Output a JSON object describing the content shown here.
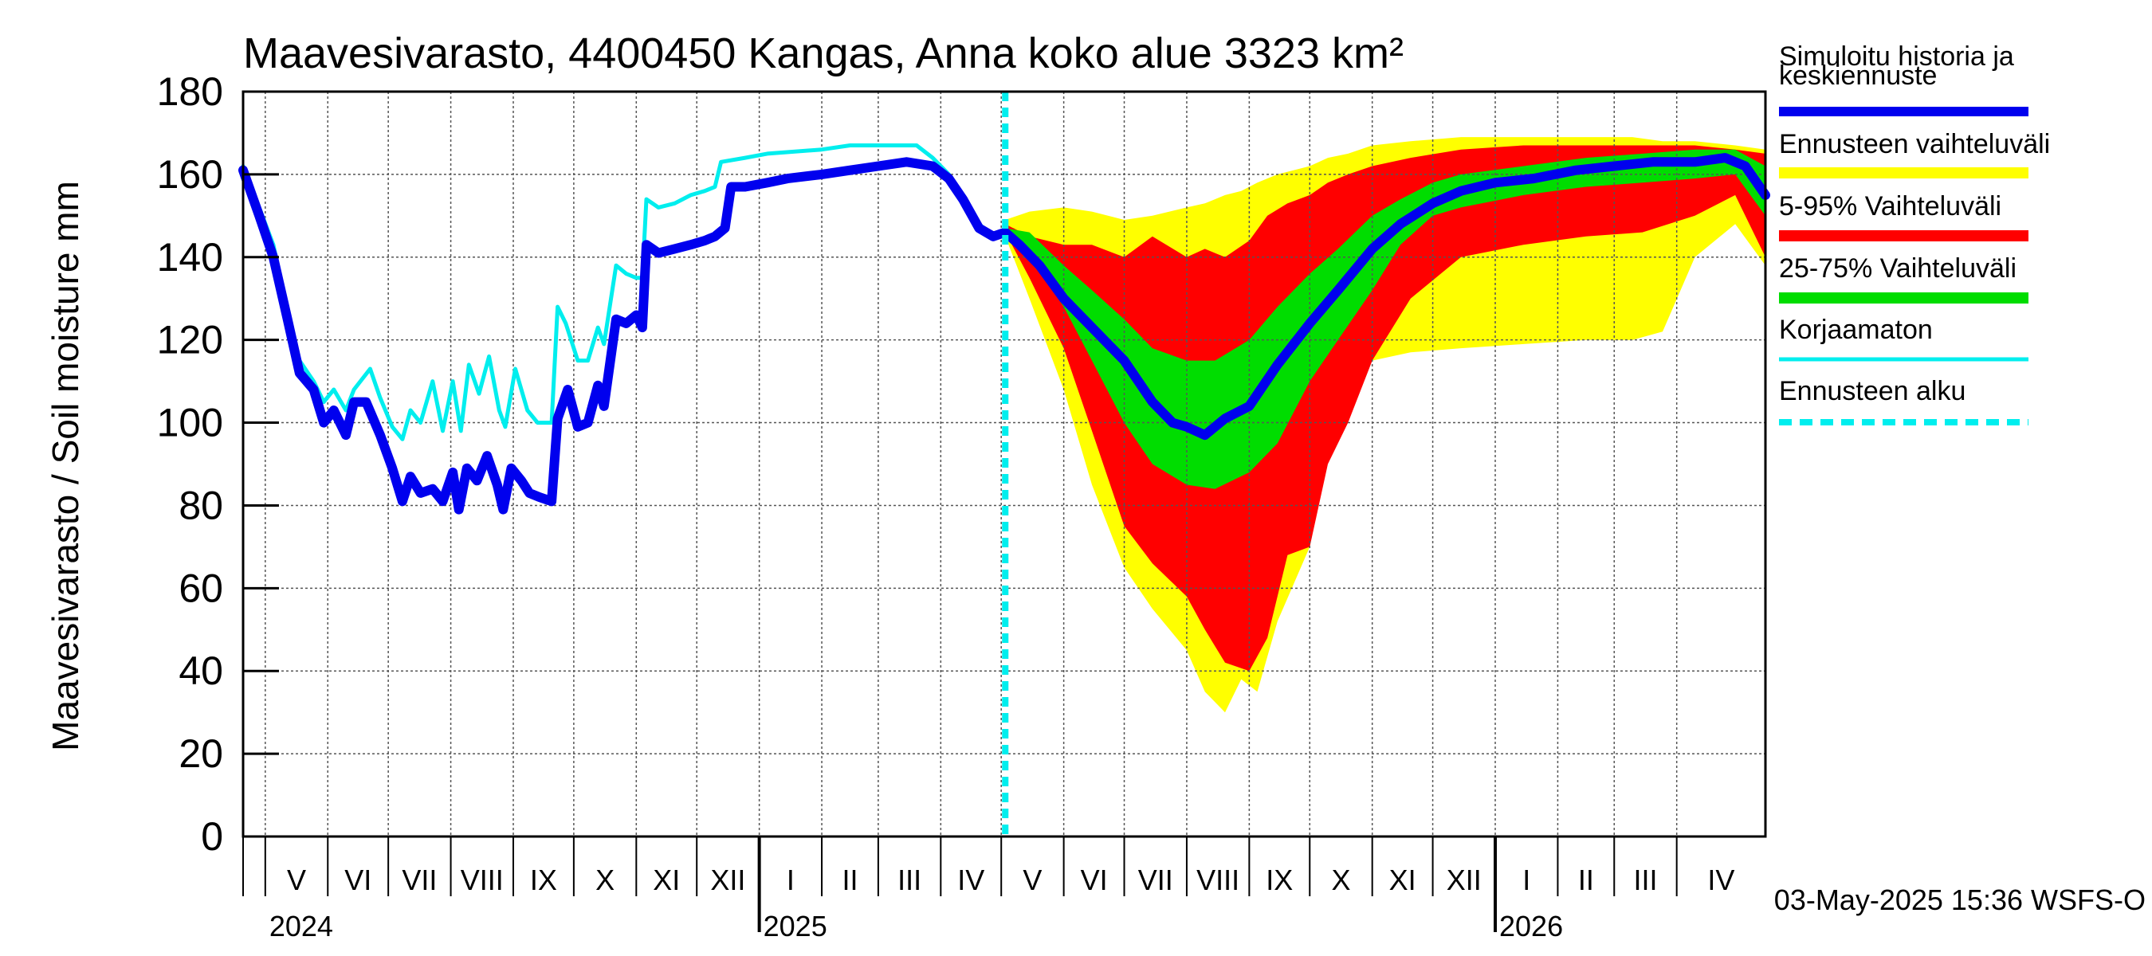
{
  "chart_data": {
    "type": "area",
    "title": "Maavesivarasto, 4400450 Kangas, Anna koko alue 3323 km²",
    "ylabel": "Maavesivarasto / Soil moisture   mm",
    "xlabel": "",
    "ylim": [
      0,
      180
    ],
    "yticks": [
      0,
      20,
      40,
      60,
      80,
      100,
      120,
      140,
      160,
      180
    ],
    "grid": true,
    "legend_position": "right",
    "x_start": "2024-04-20",
    "x_end": "2026-05-15",
    "forecast_start": "2025-05-03",
    "month_labels": [
      {
        "label": "V",
        "start": "2024-05-01"
      },
      {
        "label": "VI",
        "start": "2024-06-01"
      },
      {
        "label": "VII",
        "start": "2024-07-01"
      },
      {
        "label": "VIII",
        "start": "2024-08-01"
      },
      {
        "label": "IX",
        "start": "2024-09-01"
      },
      {
        "label": "X",
        "start": "2024-10-01"
      },
      {
        "label": "XI",
        "start": "2024-11-01"
      },
      {
        "label": "XII",
        "start": "2024-12-01"
      },
      {
        "label": "I",
        "start": "2025-01-01"
      },
      {
        "label": "II",
        "start": "2025-02-01"
      },
      {
        "label": "III",
        "start": "2025-03-01"
      },
      {
        "label": "IV",
        "start": "2025-04-01"
      },
      {
        "label": "V",
        "start": "2025-05-01"
      },
      {
        "label": "VI",
        "start": "2025-06-01"
      },
      {
        "label": "VII",
        "start": "2025-07-01"
      },
      {
        "label": "VIII",
        "start": "2025-08-01"
      },
      {
        "label": "IX",
        "start": "2025-09-01"
      },
      {
        "label": "X",
        "start": "2025-10-01"
      },
      {
        "label": "XI",
        "start": "2025-11-01"
      },
      {
        "label": "XII",
        "start": "2025-12-01"
      },
      {
        "label": "I",
        "start": "2026-01-01"
      },
      {
        "label": "II",
        "start": "2026-02-01"
      },
      {
        "label": "III",
        "start": "2026-03-01"
      },
      {
        "label": "IV",
        "start": "2026-04-01"
      }
    ],
    "year_labels": [
      {
        "label": "2024",
        "date": "2024-05-01"
      },
      {
        "label": "2025",
        "date": "2025-01-01"
      },
      {
        "label": "2026",
        "date": "2026-01-01"
      }
    ],
    "legend": [
      {
        "label": "Simuloitu historia ja keskiennuste",
        "color": "#0000ee",
        "kind": "line"
      },
      {
        "label": "Ennusteen vaihteluväli",
        "color": "#ffff00",
        "kind": "band"
      },
      {
        "label": "5-95% Vaihteluväli",
        "color": "#ff0000",
        "kind": "band"
      },
      {
        "label": "25-75% Vaihteluväli",
        "color": "#00dd00",
        "kind": "band"
      },
      {
        "label": "Korjaamaton",
        "color": "#00eeee",
        "kind": "line"
      },
      {
        "label": "Ennusteen alku",
        "color": "#00eeee",
        "kind": "dashed"
      }
    ],
    "series": {
      "simulated": {
        "color": "#0000ee",
        "points": [
          [
            "2024-04-20",
            161
          ],
          [
            "2024-04-28",
            150
          ],
          [
            "2024-05-05",
            140
          ],
          [
            "2024-05-12",
            125
          ],
          [
            "2024-05-18",
            112
          ],
          [
            "2024-05-25",
            108
          ],
          [
            "2024-05-30",
            100
          ],
          [
            "2024-06-04",
            103
          ],
          [
            "2024-06-10",
            97
          ],
          [
            "2024-06-14",
            105
          ],
          [
            "2024-06-20",
            105
          ],
          [
            "2024-06-27",
            97
          ],
          [
            "2024-07-03",
            89
          ],
          [
            "2024-07-08",
            81
          ],
          [
            "2024-07-12",
            87
          ],
          [
            "2024-07-17",
            83
          ],
          [
            "2024-07-23",
            84
          ],
          [
            "2024-07-28",
            81
          ],
          [
            "2024-08-02",
            88
          ],
          [
            "2024-08-05",
            79
          ],
          [
            "2024-08-09",
            89
          ],
          [
            "2024-08-14",
            86
          ],
          [
            "2024-08-19",
            92
          ],
          [
            "2024-08-24",
            85
          ],
          [
            "2024-08-27",
            79
          ],
          [
            "2024-08-31",
            89
          ],
          [
            "2024-09-05",
            86
          ],
          [
            "2024-09-09",
            83
          ],
          [
            "2024-09-14",
            82
          ],
          [
            "2024-09-20",
            81
          ],
          [
            "2024-09-23",
            101
          ],
          [
            "2024-09-28",
            108
          ],
          [
            "2024-10-03",
            99
          ],
          [
            "2024-10-08",
            100
          ],
          [
            "2024-10-13",
            109
          ],
          [
            "2024-10-16",
            104
          ],
          [
            "2024-10-22",
            125
          ],
          [
            "2024-10-27",
            124
          ],
          [
            "2024-11-01",
            126
          ],
          [
            "2024-11-04",
            123
          ],
          [
            "2024-11-06",
            143
          ],
          [
            "2024-11-12",
            141
          ],
          [
            "2024-11-20",
            142
          ],
          [
            "2024-11-28",
            143
          ],
          [
            "2024-12-05",
            144
          ],
          [
            "2024-12-10",
            145
          ],
          [
            "2024-12-15",
            147
          ],
          [
            "2024-12-18",
            157
          ],
          [
            "2024-12-25",
            157
          ],
          [
            "2025-01-05",
            158
          ],
          [
            "2025-01-15",
            159
          ],
          [
            "2025-02-01",
            160
          ],
          [
            "2025-02-15",
            161
          ],
          [
            "2025-03-01",
            162
          ],
          [
            "2025-03-15",
            163
          ],
          [
            "2025-03-28",
            162
          ],
          [
            "2025-04-05",
            159
          ],
          [
            "2025-04-12",
            154
          ],
          [
            "2025-04-20",
            147
          ],
          [
            "2025-04-27",
            145
          ],
          [
            "2025-05-03",
            146
          ],
          [
            "2025-05-10",
            143
          ],
          [
            "2025-05-20",
            138
          ],
          [
            "2025-06-01",
            130
          ],
          [
            "2025-06-15",
            123
          ],
          [
            "2025-07-01",
            115
          ],
          [
            "2025-07-15",
            105
          ],
          [
            "2025-07-25",
            100
          ],
          [
            "2025-08-01",
            99
          ],
          [
            "2025-08-10",
            97
          ],
          [
            "2025-08-20",
            101
          ],
          [
            "2025-09-01",
            104
          ],
          [
            "2025-09-15",
            114
          ],
          [
            "2025-10-01",
            124
          ],
          [
            "2025-10-15",
            132
          ],
          [
            "2025-11-01",
            142
          ],
          [
            "2025-11-15",
            148
          ],
          [
            "2025-12-01",
            153
          ],
          [
            "2025-12-15",
            156
          ],
          [
            "2026-01-01",
            158
          ],
          [
            "2026-01-20",
            159
          ],
          [
            "2026-02-10",
            161
          ],
          [
            "2026-03-01",
            162
          ],
          [
            "2026-03-20",
            163
          ],
          [
            "2026-04-10",
            163
          ],
          [
            "2026-04-25",
            164
          ],
          [
            "2026-05-05",
            162
          ],
          [
            "2026-05-15",
            155
          ]
        ]
      },
      "uncorrected": {
        "color": "#00eeee",
        "points": [
          [
            "2024-04-20",
            162
          ],
          [
            "2024-04-28",
            152
          ],
          [
            "2024-05-05",
            143
          ],
          [
            "2024-05-12",
            127
          ],
          [
            "2024-05-18",
            115
          ],
          [
            "2024-05-25",
            110
          ],
          [
            "2024-05-30",
            105
          ],
          [
            "2024-06-04",
            108
          ],
          [
            "2024-06-10",
            103
          ],
          [
            "2024-06-14",
            108
          ],
          [
            "2024-06-22",
            113
          ],
          [
            "2024-06-27",
            106
          ],
          [
            "2024-07-03",
            99
          ],
          [
            "2024-07-08",
            96
          ],
          [
            "2024-07-12",
            103
          ],
          [
            "2024-07-17",
            100
          ],
          [
            "2024-07-23",
            110
          ],
          [
            "2024-07-28",
            98
          ],
          [
            "2024-08-02",
            110
          ],
          [
            "2024-08-06",
            98
          ],
          [
            "2024-08-10",
            114
          ],
          [
            "2024-08-15",
            107
          ],
          [
            "2024-08-20",
            116
          ],
          [
            "2024-08-25",
            103
          ],
          [
            "2024-08-28",
            99
          ],
          [
            "2024-09-02",
            113
          ],
          [
            "2024-09-08",
            103
          ],
          [
            "2024-09-13",
            100
          ],
          [
            "2024-09-20",
            100
          ],
          [
            "2024-09-23",
            128
          ],
          [
            "2024-09-27",
            124
          ],
          [
            "2024-10-03",
            115
          ],
          [
            "2024-10-08",
            115
          ],
          [
            "2024-10-13",
            123
          ],
          [
            "2024-10-16",
            119
          ],
          [
            "2024-10-22",
            138
          ],
          [
            "2024-10-27",
            136
          ],
          [
            "2024-11-01",
            135
          ],
          [
            "2024-11-04",
            135
          ],
          [
            "2024-11-06",
            154
          ],
          [
            "2024-11-12",
            152
          ],
          [
            "2024-11-20",
            153
          ],
          [
            "2024-11-28",
            155
          ],
          [
            "2024-12-05",
            156
          ],
          [
            "2024-12-10",
            157
          ],
          [
            "2024-12-13",
            163
          ],
          [
            "2024-12-25",
            164
          ],
          [
            "2025-01-05",
            165
          ],
          [
            "2025-02-01",
            166
          ],
          [
            "2025-02-15",
            167
          ],
          [
            "2025-03-01",
            167
          ],
          [
            "2025-03-20",
            167
          ],
          [
            "2025-03-28",
            164
          ],
          [
            "2025-04-05",
            160
          ],
          [
            "2025-04-12",
            155
          ],
          [
            "2025-04-20",
            148
          ],
          [
            "2025-04-27",
            145
          ],
          [
            "2025-05-03",
            146
          ]
        ]
      }
    },
    "bands": {
      "range_min_max": {
        "color": "#ffff00",
        "points": [
          [
            "2025-05-03",
            145,
            149
          ],
          [
            "2025-05-15",
            130,
            151
          ],
          [
            "2025-06-01",
            108,
            152
          ],
          [
            "2025-06-15",
            85,
            151
          ],
          [
            "2025-07-01",
            65,
            149
          ],
          [
            "2025-07-15",
            55,
            150
          ],
          [
            "2025-08-01",
            45,
            152
          ],
          [
            "2025-08-10",
            35,
            153
          ],
          [
            "2025-08-20",
            30,
            155
          ],
          [
            "2025-08-28",
            38,
            156
          ],
          [
            "2025-09-05",
            35,
            158
          ],
          [
            "2025-09-15",
            52,
            160
          ],
          [
            "2025-10-01",
            70,
            162
          ],
          [
            "2025-10-10",
            95,
            164
          ],
          [
            "2025-10-20",
            110,
            165
          ],
          [
            "2025-11-01",
            115,
            167
          ],
          [
            "2025-11-20",
            117,
            168
          ],
          [
            "2025-12-15",
            118,
            169
          ],
          [
            "2026-01-15",
            119,
            169
          ],
          [
            "2026-02-15",
            120,
            169
          ],
          [
            "2026-03-10",
            120,
            169
          ],
          [
            "2026-03-25",
            122,
            168
          ],
          [
            "2026-04-10",
            140,
            168
          ],
          [
            "2026-04-30",
            148,
            167
          ],
          [
            "2026-05-15",
            138,
            166
          ]
        ]
      },
      "p5_95": {
        "color": "#ff0000",
        "points": [
          [
            "2025-05-03",
            146,
            148
          ],
          [
            "2025-05-15",
            135,
            145
          ],
          [
            "2025-06-01",
            118,
            143
          ],
          [
            "2025-06-15",
            98,
            143
          ],
          [
            "2025-07-01",
            75,
            140
          ],
          [
            "2025-07-15",
            66,
            145
          ],
          [
            "2025-08-01",
            58,
            140
          ],
          [
            "2025-08-10",
            50,
            142
          ],
          [
            "2025-08-20",
            42,
            140
          ],
          [
            "2025-09-01",
            40,
            144
          ],
          [
            "2025-09-10",
            48,
            150
          ],
          [
            "2025-09-20",
            68,
            153
          ],
          [
            "2025-10-01",
            70,
            155
          ],
          [
            "2025-10-10",
            90,
            158
          ],
          [
            "2025-10-20",
            100,
            160
          ],
          [
            "2025-11-01",
            115,
            162
          ],
          [
            "2025-11-20",
            130,
            164
          ],
          [
            "2025-12-15",
            140,
            166
          ],
          [
            "2026-01-15",
            143,
            167
          ],
          [
            "2026-02-15",
            145,
            167
          ],
          [
            "2026-03-15",
            146,
            167
          ],
          [
            "2026-04-10",
            150,
            167
          ],
          [
            "2026-04-30",
            155,
            166
          ],
          [
            "2026-05-15",
            140,
            165
          ]
        ]
      },
      "p25_75": {
        "color": "#00dd00",
        "points": [
          [
            "2025-05-03",
            146,
            147
          ],
          [
            "2025-05-15",
            140,
            146
          ],
          [
            "2025-06-01",
            128,
            138
          ],
          [
            "2025-06-15",
            115,
            132
          ],
          [
            "2025-07-01",
            100,
            125
          ],
          [
            "2025-07-15",
            90,
            118
          ],
          [
            "2025-08-01",
            85,
            115
          ],
          [
            "2025-08-15",
            84,
            115
          ],
          [
            "2025-09-01",
            88,
            120
          ],
          [
            "2025-09-15",
            95,
            128
          ],
          [
            "2025-10-01",
            110,
            136
          ],
          [
            "2025-10-15",
            120,
            142
          ],
          [
            "2025-11-01",
            132,
            150
          ],
          [
            "2025-11-15",
            143,
            154
          ],
          [
            "2025-12-01",
            150,
            158
          ],
          [
            "2025-12-15",
            152,
            160
          ],
          [
            "2026-01-15",
            155,
            162
          ],
          [
            "2026-02-15",
            157,
            164
          ],
          [
            "2026-03-15",
            158,
            165
          ],
          [
            "2026-04-10",
            159,
            166
          ],
          [
            "2026-04-30",
            160,
            166
          ],
          [
            "2026-05-15",
            150,
            162
          ]
        ]
      }
    }
  },
  "footer": {
    "timestamp": "03-May-2025 15:36 WSFS-O"
  }
}
